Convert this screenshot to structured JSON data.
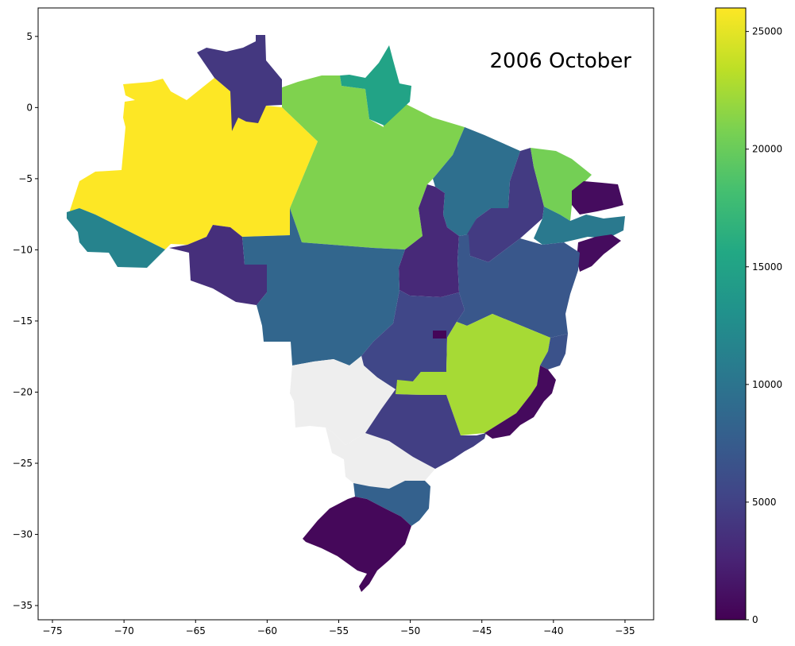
{
  "map": {
    "title": "2006 October",
    "x_ticks": [
      "−75",
      "−70",
      "−65",
      "−60",
      "−55",
      "−50",
      "−45",
      "−40",
      "−35"
    ],
    "y_ticks": [
      "5",
      "0",
      "−5",
      "−10",
      "−15",
      "−20",
      "−25",
      "−30",
      "−35"
    ],
    "xlim": [
      -76,
      -33
    ],
    "ylim": [
      -36,
      7
    ],
    "no_data_color": "#eeeeee"
  },
  "colorbar": {
    "colormap": "viridis",
    "range": [
      0,
      26000
    ],
    "ticks": [
      "0",
      "5000",
      "10000",
      "15000",
      "20000",
      "25000"
    ]
  },
  "chart_data": {
    "type": "choropleth",
    "title": "2006 October",
    "value_range": [
      0,
      26000
    ],
    "regions": [
      {
        "shape": "amazonas",
        "value": 26000
      },
      {
        "shape": "para",
        "value": 21000
      },
      {
        "shape": "minas",
        "value": 22500
      },
      {
        "shape": "amapa",
        "value": 15000
      },
      {
        "shape": "ceara",
        "value": 20500
      },
      {
        "shape": "maranhao",
        "value": 9500
      },
      {
        "shape": "mato_grosso",
        "value": 8500
      },
      {
        "shape": "bahia",
        "value": 7000
      },
      {
        "shape": "acre",
        "value": 11500
      },
      {
        "shape": "rio_grande_norte_paraiba",
        "value": 10500
      },
      {
        "shape": "piaui",
        "value": 4500
      },
      {
        "shape": "roraima",
        "value": 4200
      },
      {
        "shape": "goias",
        "value": 5500
      },
      {
        "shape": "parana",
        "value": 4800
      },
      {
        "shape": "santa_catarina",
        "value": 8000
      },
      {
        "shape": "rondonia",
        "value": 3500
      },
      {
        "shape": "tocantins",
        "value": 3000
      },
      {
        "shape": "espirito_santo",
        "value": 6500
      },
      {
        "shape": "rio_grande_sul",
        "value": 500
      },
      {
        "shape": "rio_janeiro",
        "value": 700
      },
      {
        "shape": "sao_paulo_coast",
        "value": 600
      },
      {
        "shape": "pernambuco_alagoas",
        "value": 800
      },
      {
        "shape": "distrito_federal",
        "value": 300
      },
      {
        "shape": "mato_grosso_sul",
        "value": null
      },
      {
        "shape": "sao_paulo",
        "value": null
      }
    ]
  }
}
